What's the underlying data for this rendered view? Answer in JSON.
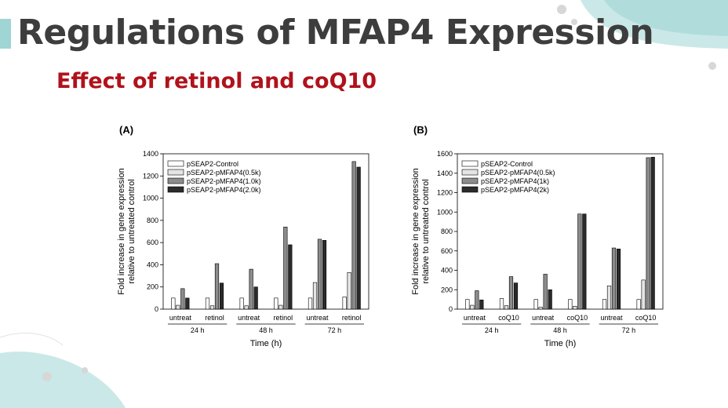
{
  "slide": {
    "title": "Regulations of MFAP4 Expression",
    "subtitle": "Effect of retinol and coQ10",
    "colors": {
      "title": "#3d3d3d",
      "subtitle": "#b0121b",
      "accent": "#9fd5d4"
    }
  },
  "chart_data": [
    {
      "type": "bar",
      "panel_label": "(A)",
      "ylabel": [
        "Fold increase in gene expression",
        "relative to untreated control"
      ],
      "xlabel": "Time (h)",
      "ylim": [
        0,
        1400
      ],
      "yticks": [
        0,
        200,
        400,
        600,
        800,
        1000,
        1200,
        1400
      ],
      "categories": [
        "untreat",
        "retinol",
        "untreat",
        "retinol",
        "untreat",
        "retinol"
      ],
      "groups": [
        "24 h",
        "48 h",
        "72 h"
      ],
      "legend_position": "top-left",
      "series": [
        {
          "name": "pSEAP2-Control",
          "color": "#ffffff",
          "values": [
            100,
            100,
            100,
            100,
            100,
            110
          ]
        },
        {
          "name": "pSEAP2-pMFAP4(0.5k)",
          "color": "#e4e4e4",
          "values": [
            35,
            30,
            30,
            35,
            240,
            330
          ]
        },
        {
          "name": "pSEAP2-pMFAP4(1.0k)",
          "color": "#8c8c8c",
          "values": [
            185,
            410,
            360,
            740,
            630,
            1330
          ]
        },
        {
          "name": "pSEAP2-pMFAP4(2.0k)",
          "color": "#2b2b2b",
          "values": [
            100,
            235,
            200,
            580,
            620,
            1280
          ]
        }
      ]
    },
    {
      "type": "bar",
      "panel_label": "(B)",
      "ylabel": [
        "Fold increase in gene expression",
        "relative to untreated control"
      ],
      "xlabel": "Time (h)",
      "ylim": [
        0,
        1600
      ],
      "yticks": [
        0,
        200,
        400,
        600,
        800,
        1000,
        1200,
        1400,
        1600
      ],
      "categories": [
        "untreat",
        "coQ10",
        "untreat",
        "coQ10",
        "untreat",
        "coQ10"
      ],
      "groups": [
        "24 h",
        "48 h",
        "72 h"
      ],
      "legend_position": "top-left",
      "series": [
        {
          "name": "pSEAP2-Control",
          "color": "#ffffff",
          "values": [
            100,
            110,
            100,
            100,
            100,
            100
          ]
        },
        {
          "name": "pSEAP2-pMFAP4(0.5k)",
          "color": "#e4e4e4",
          "values": [
            40,
            35,
            20,
            30,
            240,
            300
          ]
        },
        {
          "name": "pSEAP2-pMFAP4(1k)",
          "color": "#8c8c8c",
          "values": [
            190,
            335,
            360,
            980,
            630,
            1560
          ]
        },
        {
          "name": "pSEAP2-pMFAP4(2k)",
          "color": "#2b2b2b",
          "values": [
            95,
            270,
            200,
            980,
            620,
            1565
          ]
        }
      ]
    }
  ]
}
